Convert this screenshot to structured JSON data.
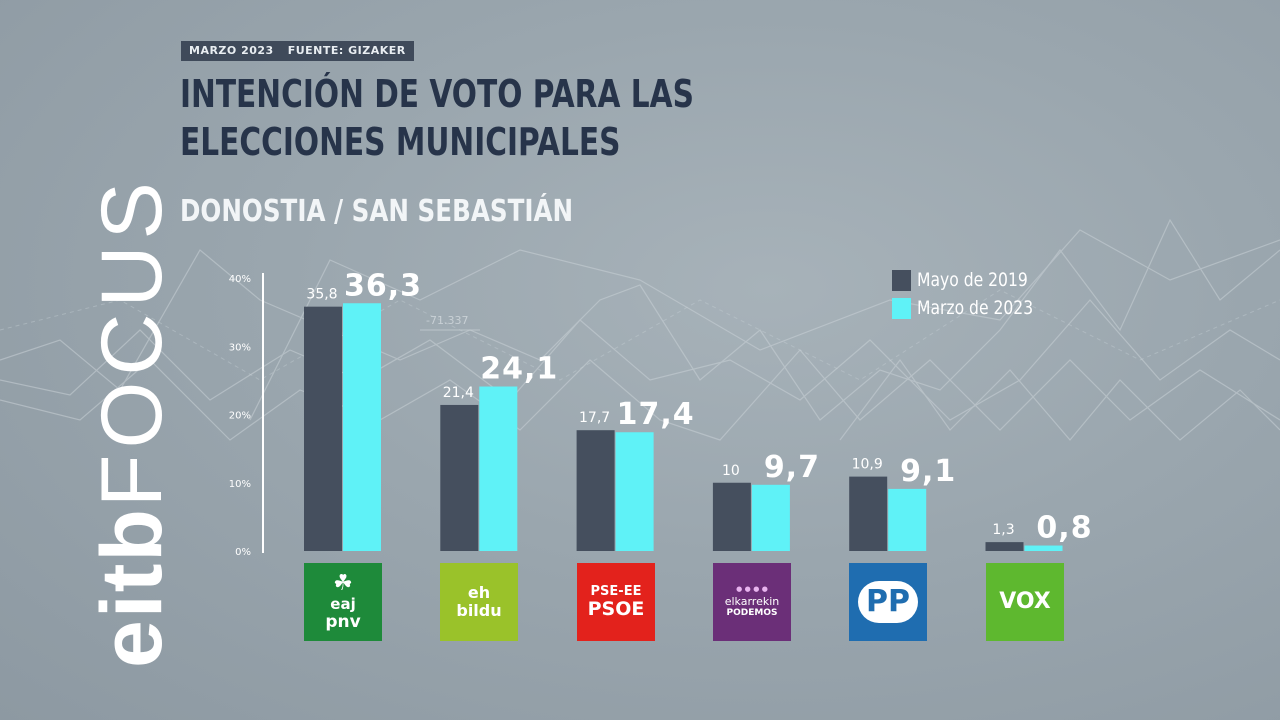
{
  "header": {
    "date": "MARZO 2023",
    "source": "FUENTE: GIZAKER",
    "title": "INTENCIÓN DE VOTO PARA LAS ELECCIONES MUNICIPALES",
    "subtitle": "DONOSTIA / SAN SEBASTIÁN"
  },
  "brand": {
    "part1": "eitb",
    "part2": "FOCUS"
  },
  "background_label": "-71.337",
  "colors": {
    "series_2019": "#454f5e",
    "series_2023": "#5ff2f7",
    "title": "#27344a",
    "pnv": "#1e8a3a",
    "bildu": "#9ac22a",
    "psoe": "#e3221c",
    "podemos": "#6b2f78",
    "pp": "#1f6db0",
    "vox": "#5eb82f"
  },
  "parties": [
    {
      "id": "pnv",
      "lines": [
        "eaj",
        "pnv"
      ],
      "icon": "pnv-clover-logo"
    },
    {
      "id": "bildu",
      "lines": [
        "eh",
        "bildu"
      ],
      "icon": "bildu-logo"
    },
    {
      "id": "psoe",
      "lines": [
        "PSE-EE",
        "PSOE"
      ],
      "icon": "psoe-logo"
    },
    {
      "id": "podemos",
      "lines": [
        "elkarrekin",
        "PODEMOS"
      ],
      "icon": "podemos-dots-logo"
    },
    {
      "id": "pp",
      "lines": [
        "PP"
      ],
      "icon": "pp-gull-logo"
    },
    {
      "id": "vox",
      "lines": [
        "VOX"
      ],
      "icon": "vox-logo"
    }
  ],
  "chart_data": {
    "type": "bar",
    "categories": [
      "EAJ-PNV",
      "EH Bildu",
      "PSE-EE PSOE",
      "Elkarrekin Podemos",
      "PP",
      "VOX"
    ],
    "series": [
      {
        "name": "Mayo de 2019",
        "values": [
          35.8,
          21.4,
          17.7,
          10,
          10.9,
          1.3
        ],
        "labels": [
          "35,8",
          "21,4",
          "17,7",
          "10",
          "10,9",
          "1,3"
        ]
      },
      {
        "name": "Marzo de 2023",
        "values": [
          36.3,
          24.1,
          17.4,
          9.7,
          9.1,
          0.8
        ],
        "labels": [
          "36,3",
          "24,1",
          "17,4",
          "9,7",
          "9,1",
          "0,8"
        ]
      }
    ],
    "yticks": [
      0,
      10,
      20,
      30,
      40
    ],
    "ytick_labels": [
      "0%",
      "10%",
      "20%",
      "30%",
      "40%"
    ],
    "ylim": [
      0,
      40
    ],
    "legend": "top-right",
    "grid": false
  }
}
